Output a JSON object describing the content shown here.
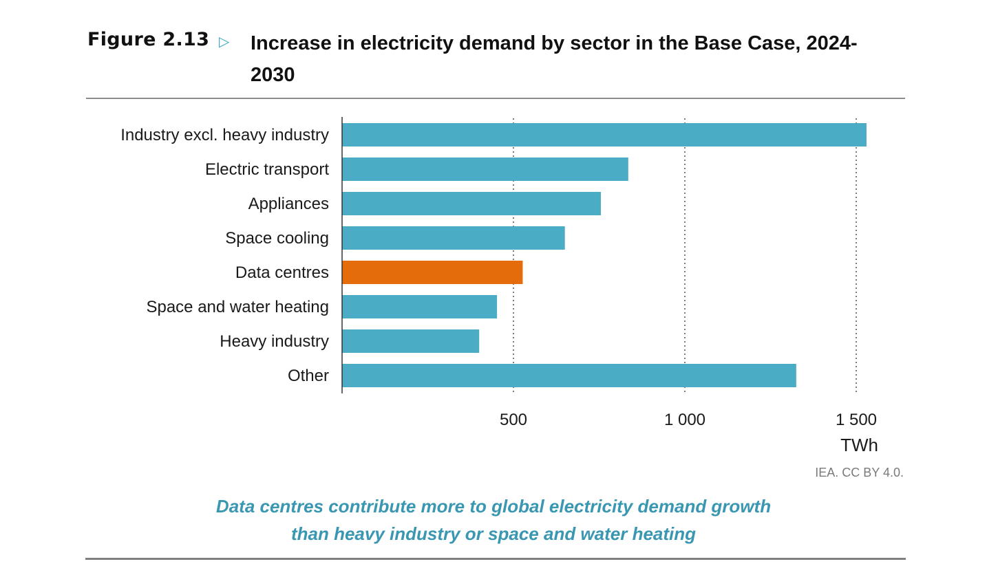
{
  "header": {
    "figure_label": "Figure 2.13",
    "arrow_glyph": "▷",
    "title": "Increase in electricity demand by sector in the Base Case, 2024-2030"
  },
  "chart_data": {
    "type": "bar",
    "orientation": "horizontal",
    "title": "Increase in electricity demand by sector in the Base Case, 2024-2030",
    "xlabel": "TWh",
    "ylabel": "",
    "xlim": [
      0,
      1500
    ],
    "xticks": [
      500,
      1000,
      1500
    ],
    "xtick_labels": [
      "500",
      "1 000",
      "1 500"
    ],
    "grid": "vertical dotted",
    "categories": [
      "Industry excl. heavy industry",
      "Electric transport",
      "Appliances",
      "Space cooling",
      "Data centres",
      "Space and water heating",
      "Heavy industry",
      "Other"
    ],
    "values": [
      1530,
      835,
      755,
      650,
      527,
      452,
      400,
      1325
    ],
    "colors": [
      "#4bacc6",
      "#4bacc6",
      "#4bacc6",
      "#4bacc6",
      "#e46c0a",
      "#4bacc6",
      "#4bacc6",
      "#4bacc6"
    ],
    "unit": "TWh"
  },
  "footer": {
    "source": "IEA. CC BY 4.0.",
    "takeaway_line1": "Data centres contribute more to global electricity demand growth",
    "takeaway_line2": "than heavy industry or space and water heating"
  },
  "colors": {
    "bar_default": "#4bacc6",
    "bar_highlight": "#e46c0a",
    "takeaway_text": "#3a97b2",
    "arrow": "#3ba7c1"
  }
}
